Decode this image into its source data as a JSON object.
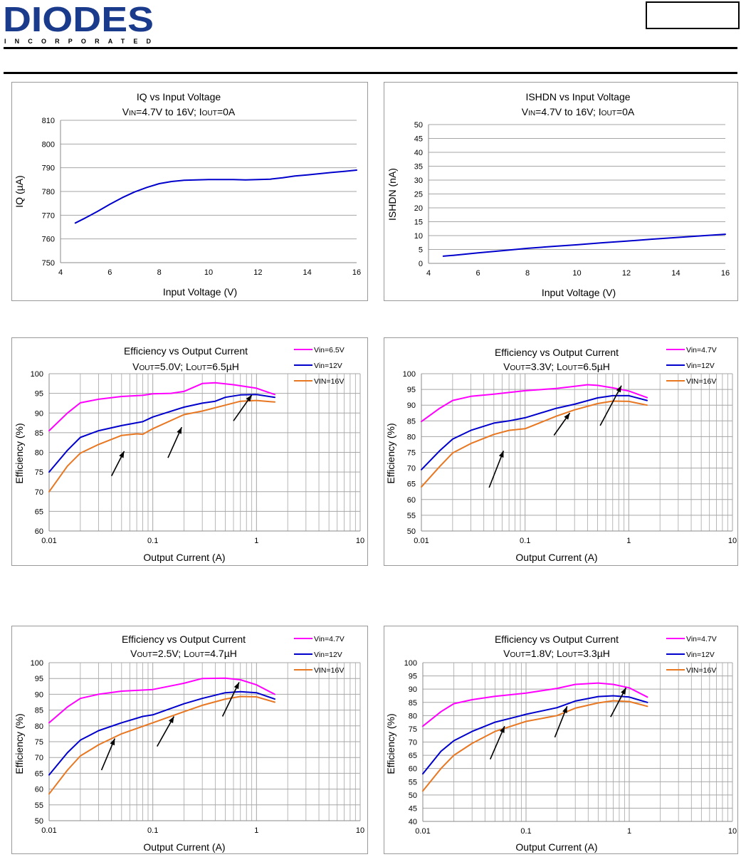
{
  "header": {
    "brand": "DIODES",
    "brand_sub": "INCORPORATED",
    "brand_color": "#1a3a8c"
  },
  "colors": {
    "magenta": "#ff00ff",
    "blue": "#0000cc",
    "orange": "#e87722",
    "grid": "#a6a6a6",
    "arrow": "#000000"
  },
  "chart_data": [
    {
      "type": "line",
      "title": "IQ vs Input Voltage",
      "subtitle": "VIN=4.7V to 16V; IOUT=0A",
      "xlabel": "Input Voltage (V)",
      "ylabel": "IQ (µA)",
      "xlim": [
        4,
        16
      ],
      "ylim": [
        750,
        810
      ],
      "xticks": [
        4,
        6,
        8,
        10,
        12,
        14,
        16
      ],
      "yticks": [
        750,
        760,
        770,
        780,
        790,
        800,
        810
      ],
      "grid": "horizontal",
      "series": [
        {
          "color": "#0000cc",
          "x": [
            4.6,
            5.0,
            5.5,
            6.0,
            6.5,
            7.0,
            7.5,
            8.0,
            8.5,
            9.0,
            9.5,
            10.0,
            10.5,
            11.0,
            11.5,
            12.0,
            12.5,
            13.0,
            13.5,
            14.0,
            14.5,
            15.0,
            15.5,
            16.0
          ],
          "y": [
            766.7,
            768.8,
            771.6,
            774.6,
            777.4,
            779.8,
            781.7,
            783.3,
            784.2,
            784.7,
            784.9,
            785.0,
            785.0,
            785.0,
            784.9,
            785.0,
            785.2,
            785.8,
            786.5,
            787.0,
            787.5,
            788.0,
            788.5,
            789.0
          ]
        }
      ]
    },
    {
      "type": "line",
      "title": "ISHDN vs Input Voltage",
      "subtitle": "VIN=4.7V to 16V; IOUT=0A",
      "xlabel": "Input Voltage (V)",
      "ylabel": "ISHDN (nA)",
      "xlim": [
        4,
        16
      ],
      "ylim": [
        0,
        50
      ],
      "xticks": [
        4,
        6,
        8,
        10,
        12,
        14,
        16
      ],
      "yticks": [
        0,
        5,
        10,
        15,
        20,
        25,
        30,
        35,
        40,
        45,
        50
      ],
      "grid": "horizontal",
      "series": [
        {
          "color": "#0000cc",
          "x": [
            4.6,
            5.0,
            6.0,
            7.0,
            8.0,
            9.0,
            10.0,
            11.0,
            12.0,
            13.0,
            14.0,
            15.0,
            16.0
          ],
          "y": [
            2.6,
            2.9,
            3.8,
            4.6,
            5.4,
            6.1,
            6.7,
            7.4,
            8.0,
            8.7,
            9.3,
            9.9,
            10.5
          ]
        }
      ]
    },
    {
      "type": "line",
      "title": "Efficiency vs Output Current",
      "subtitle": "VOUT=5.0V; LOUT=6.5µH",
      "xlabel": "Output Current (A)",
      "ylabel": "Efficiency (%)",
      "xscale": "log",
      "xlim": [
        0.01,
        10
      ],
      "ylim": [
        60,
        100
      ],
      "xticks": [
        "0.01",
        "0.1",
        "1",
        "10"
      ],
      "yticks": [
        60,
        65,
        70,
        75,
        80,
        85,
        90,
        95,
        100
      ],
      "grid": "both",
      "legend": "top-right",
      "series": [
        {
          "name": "Vin=6.5V",
          "color": "#ff00ff",
          "x": [
            0.01,
            0.015,
            0.02,
            0.03,
            0.05,
            0.08,
            0.1,
            0.15,
            0.2,
            0.3,
            0.4,
            0.6,
            1.0,
            1.5
          ],
          "y": [
            85.5,
            90.0,
            92.6,
            93.5,
            94.2,
            94.5,
            94.9,
            95.0,
            95.5,
            97.5,
            97.7,
            97.2,
            96.3,
            94.7
          ]
        },
        {
          "name": "Vin=12V",
          "color": "#0000cc",
          "x": [
            0.01,
            0.015,
            0.02,
            0.03,
            0.05,
            0.08,
            0.1,
            0.2,
            0.3,
            0.4,
            0.5,
            0.7,
            1.0,
            1.5
          ],
          "y": [
            75.0,
            80.5,
            83.8,
            85.5,
            86.8,
            87.8,
            89.0,
            91.5,
            92.5,
            93.0,
            94.0,
            94.6,
            94.7,
            94.0
          ]
        },
        {
          "name": "VIN=16V",
          "color": "#e87722",
          "x": [
            0.01,
            0.015,
            0.02,
            0.03,
            0.05,
            0.07,
            0.08,
            0.1,
            0.2,
            0.3,
            0.5,
            0.7,
            1.0,
            1.5
          ],
          "y": [
            70.0,
            76.5,
            79.8,
            82.0,
            84.3,
            84.7,
            84.6,
            86.0,
            89.6,
            90.5,
            92.0,
            93.0,
            93.2,
            92.8
          ]
        }
      ],
      "annotations": [
        {
          "from": [
            0.04,
            74
          ],
          "to": [
            0.053,
            80.3
          ]
        },
        {
          "from": [
            0.14,
            78.6
          ],
          "to": [
            0.19,
            86.4
          ]
        },
        {
          "from": [
            0.6,
            88
          ],
          "to": [
            0.9,
            94.6
          ]
        }
      ]
    },
    {
      "type": "line",
      "title": "Efficiency vs Output Current",
      "subtitle": "VOUT=3.3V; LOUT=6.5µH",
      "xlabel": "Output Current (A)",
      "ylabel": "Efficiency (%)",
      "xscale": "log",
      "xlim": [
        0.01,
        10
      ],
      "ylim": [
        50,
        100
      ],
      "xticks": [
        "0.01",
        "0.1",
        "1",
        "10"
      ],
      "yticks": [
        50,
        55,
        60,
        65,
        70,
        75,
        80,
        85,
        90,
        95,
        100
      ],
      "grid": "both",
      "legend": "top-right",
      "series": [
        {
          "name": "Vin=4.7V",
          "color": "#ff00ff",
          "x": [
            0.01,
            0.015,
            0.02,
            0.03,
            0.05,
            0.1,
            0.2,
            0.3,
            0.4,
            0.5,
            0.7,
            1.0,
            1.5
          ],
          "y": [
            84.8,
            89.0,
            91.5,
            92.8,
            93.5,
            94.6,
            95.3,
            96.0,
            96.5,
            96.3,
            95.5,
            94.5,
            92.4
          ]
        },
        {
          "name": "Vin=12V",
          "color": "#0000cc",
          "x": [
            0.01,
            0.015,
            0.02,
            0.03,
            0.05,
            0.07,
            0.1,
            0.2,
            0.3,
            0.5,
            0.7,
            1.0,
            1.5
          ],
          "y": [
            69.5,
            75.5,
            79.2,
            82.0,
            84.3,
            85.0,
            86.0,
            89.0,
            90.3,
            92.3,
            93.0,
            93.0,
            91.5
          ]
        },
        {
          "name": "VIN=16V",
          "color": "#e87722",
          "x": [
            0.01,
            0.015,
            0.02,
            0.03,
            0.05,
            0.07,
            0.1,
            0.2,
            0.3,
            0.5,
            0.7,
            1.0,
            1.5
          ],
          "y": [
            64.0,
            70.5,
            74.8,
            77.8,
            80.7,
            82.0,
            82.5,
            86.5,
            88.5,
            90.5,
            91.3,
            91.2,
            90.0
          ]
        }
      ],
      "annotations": [
        {
          "from": [
            0.045,
            63.8
          ],
          "to": [
            0.062,
            75.5
          ]
        },
        {
          "from": [
            0.19,
            80.4
          ],
          "to": [
            0.27,
            87.5
          ]
        },
        {
          "from": [
            0.53,
            83.5
          ],
          "to": [
            0.85,
            96.2
          ]
        }
      ]
    },
    {
      "type": "line",
      "title": "Efficiency vs Output Current",
      "subtitle": "VOUT=2.5V; LOUT=4.7µH",
      "xlabel": "Output Current (A)",
      "ylabel": "Efficiency (%)",
      "xscale": "log",
      "xlim": [
        0.01,
        10
      ],
      "ylim": [
        50,
        100
      ],
      "xticks": [
        "0.01",
        "0.1",
        "1",
        "10"
      ],
      "yticks": [
        50,
        55,
        60,
        65,
        70,
        75,
        80,
        85,
        90,
        95,
        100
      ],
      "grid": "both",
      "legend": "top-right",
      "series": [
        {
          "name": "Vin=4.7V",
          "color": "#ff00ff",
          "x": [
            0.01,
            0.015,
            0.02,
            0.03,
            0.05,
            0.1,
            0.2,
            0.3,
            0.5,
            0.7,
            1.0,
            1.5
          ],
          "y": [
            81.0,
            86.0,
            88.7,
            90.0,
            91.0,
            91.5,
            93.5,
            95.0,
            95.1,
            94.6,
            93.0,
            90.0
          ]
        },
        {
          "name": "Vin=12V",
          "color": "#0000cc",
          "x": [
            0.01,
            0.015,
            0.02,
            0.03,
            0.05,
            0.08,
            0.1,
            0.2,
            0.3,
            0.5,
            0.7,
            1.0,
            1.5
          ],
          "y": [
            64.5,
            71.5,
            75.5,
            78.5,
            81.0,
            83.0,
            83.5,
            87.0,
            88.7,
            90.5,
            90.8,
            90.5,
            88.5
          ]
        },
        {
          "name": "VIN=16V",
          "color": "#e87722",
          "x": [
            0.01,
            0.015,
            0.02,
            0.03,
            0.05,
            0.1,
            0.2,
            0.3,
            0.5,
            0.7,
            1.0,
            1.5
          ],
          "y": [
            58.5,
            66.0,
            70.5,
            74.0,
            77.5,
            81.0,
            84.5,
            86.5,
            88.5,
            89.3,
            89.2,
            87.5
          ]
        }
      ],
      "annotations": [
        {
          "from": [
            0.032,
            66
          ],
          "to": [
            0.043,
            76
          ]
        },
        {
          "from": [
            0.11,
            73.5
          ],
          "to": [
            0.16,
            83
          ]
        },
        {
          "from": [
            0.47,
            83
          ],
          "to": [
            0.68,
            93.8
          ]
        }
      ]
    },
    {
      "type": "line",
      "title": "Efficiency vs Output Current",
      "subtitle": "VOUT=1.8V; LOUT=3.3µH",
      "xlabel": "Output Current (A)",
      "ylabel": "Efficiency (%)",
      "xscale": "log",
      "xlim": [
        0.01,
        10
      ],
      "ylim": [
        40,
        100
      ],
      "xticks": [
        "0.01",
        "0.1",
        "1",
        "10"
      ],
      "yticks": [
        40,
        45,
        50,
        55,
        60,
        65,
        70,
        75,
        80,
        85,
        90,
        95,
        100
      ],
      "grid": "both",
      "legend": "top-right",
      "series": [
        {
          "name": "Vin=4.7V",
          "color": "#ff00ff",
          "x": [
            0.01,
            0.015,
            0.02,
            0.03,
            0.05,
            0.1,
            0.2,
            0.3,
            0.5,
            0.7,
            1.0,
            1.5
          ],
          "y": [
            76.0,
            81.5,
            84.5,
            86.0,
            87.3,
            88.5,
            90.3,
            91.8,
            92.3,
            91.8,
            90.5,
            87.0
          ]
        },
        {
          "name": "Vin=12V",
          "color": "#0000cc",
          "x": [
            0.01,
            0.015,
            0.02,
            0.03,
            0.05,
            0.08,
            0.1,
            0.2,
            0.3,
            0.5,
            0.7,
            1.0,
            1.5
          ],
          "y": [
            58.0,
            66.5,
            70.5,
            74.0,
            77.5,
            79.5,
            80.5,
            83.0,
            85.5,
            87.2,
            87.5,
            87.0,
            85.0
          ]
        },
        {
          "name": "VIN=16V",
          "color": "#e87722",
          "x": [
            0.01,
            0.015,
            0.02,
            0.03,
            0.05,
            0.1,
            0.2,
            0.3,
            0.5,
            0.7,
            1.0,
            1.5
          ],
          "y": [
            51.5,
            60.0,
            65.0,
            69.5,
            74.0,
            77.8,
            80.0,
            82.8,
            84.8,
            85.6,
            85.3,
            83.5
          ]
        }
      ],
      "annotations": [
        {
          "from": [
            0.045,
            63.5
          ],
          "to": [
            0.062,
            76
          ]
        },
        {
          "from": [
            0.19,
            71.8
          ],
          "to": [
            0.25,
            83.5
          ]
        },
        {
          "from": [
            0.66,
            79.5
          ],
          "to": [
            0.93,
            90.5
          ]
        }
      ]
    }
  ]
}
